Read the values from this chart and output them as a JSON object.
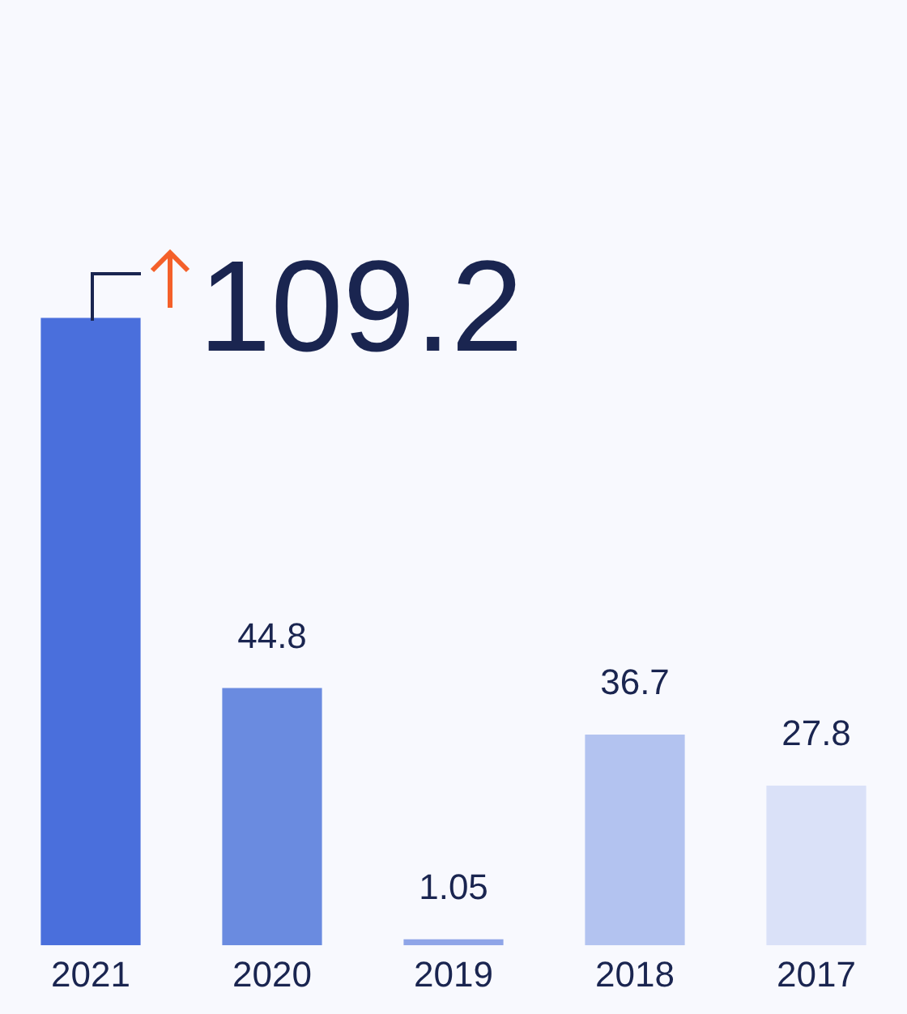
{
  "chart_data": {
    "type": "bar",
    "categories": [
      "2021",
      "2020",
      "2019",
      "2018",
      "2017"
    ],
    "values": [
      109.2,
      44.8,
      1.05,
      36.7,
      27.8
    ],
    "colors": [
      "#4a6fdc",
      "#6a8be0",
      "#8fa5e8",
      "#b3c3f0",
      "#dae1f8"
    ],
    "data_labels": true,
    "grid": false,
    "legend": false
  }
}
